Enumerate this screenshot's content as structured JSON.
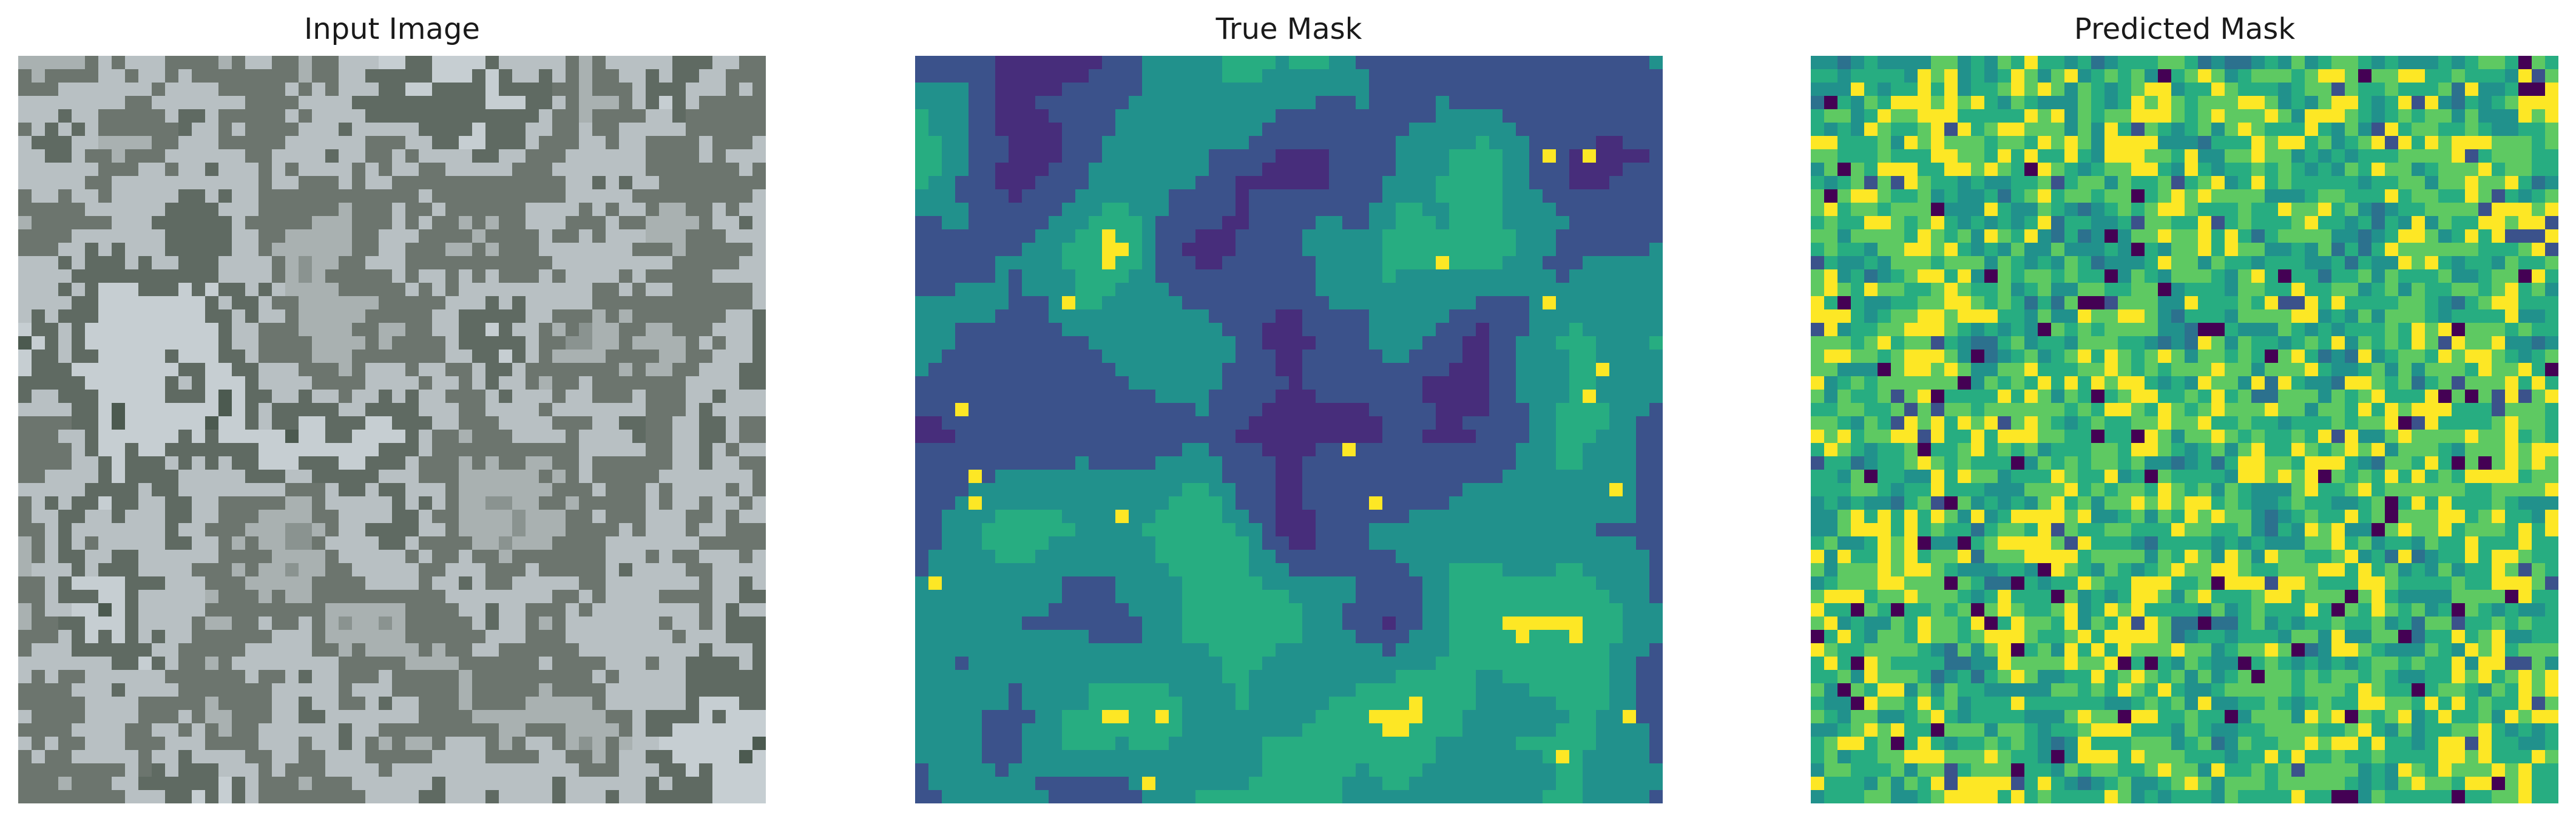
{
  "figure": {
    "panels": [
      {
        "title": "Input Image",
        "kind": "aerial-photograph",
        "palette": [
          "#8a9390",
          "#a9b1b1",
          "#6c756e",
          "#b8c0c3",
          "#5f6a62",
          "#c6ced2",
          "#4c5a50",
          "#2c3b32"
        ]
      },
      {
        "title": "True Mask",
        "kind": "segmentation-mask",
        "palette": [
          "#472d7b",
          "#3b528b",
          "#21918c",
          "#27ad81",
          "#fde725",
          "#440154"
        ]
      },
      {
        "title": "Predicted Mask",
        "kind": "segmentation-mask",
        "palette": [
          "#2c718e",
          "#21918c",
          "#27ad81",
          "#5ec962",
          "#fde725",
          "#3b528b",
          "#440154"
        ]
      }
    ]
  }
}
